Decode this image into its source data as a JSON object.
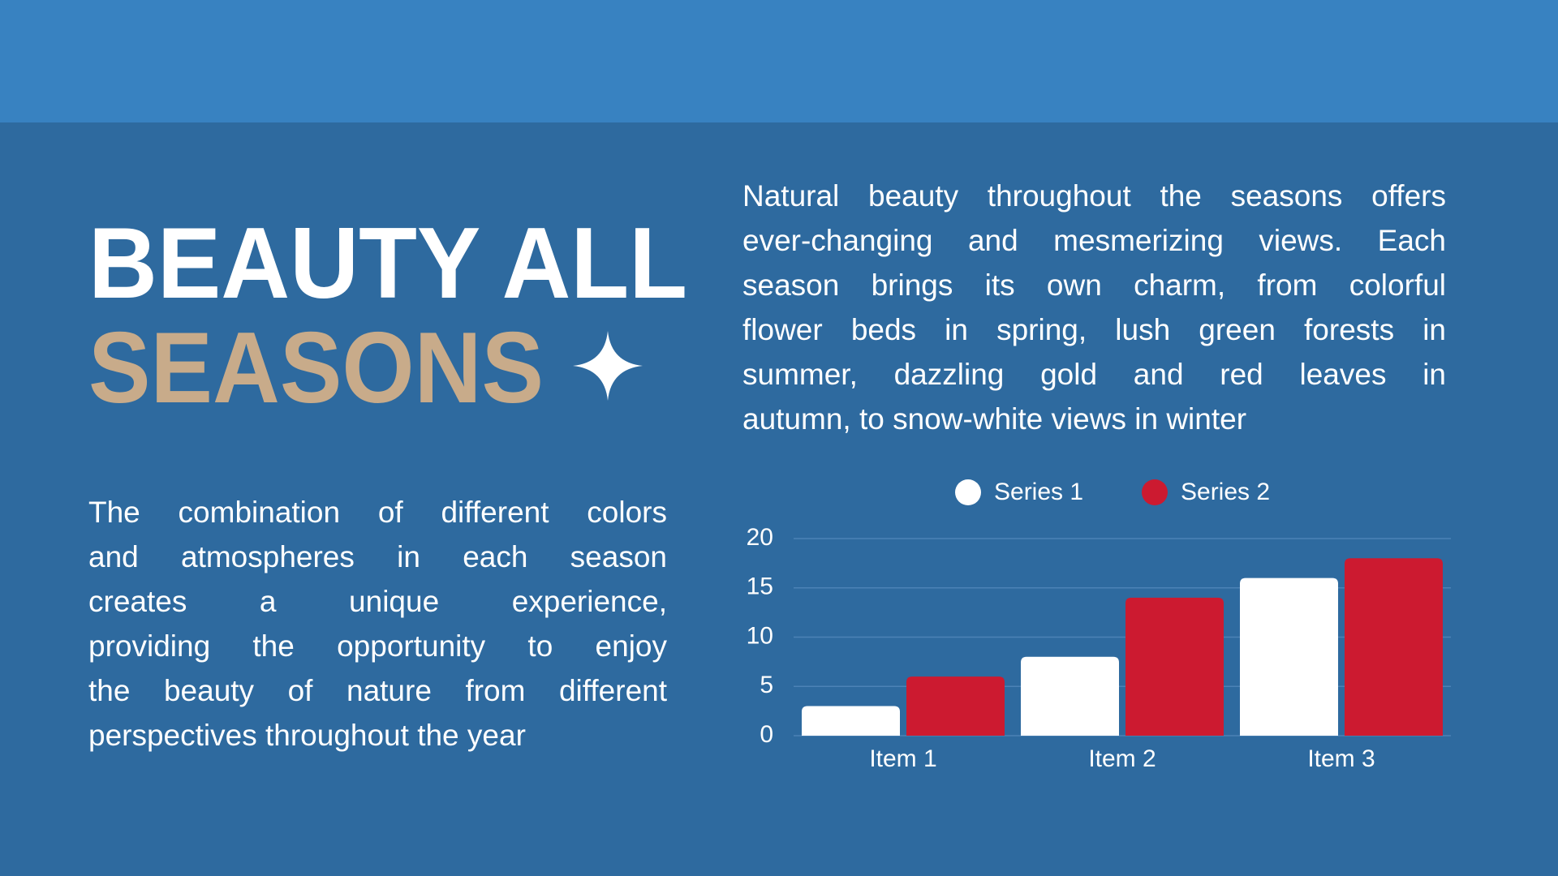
{
  "title_line1": "BEAUTY ALL",
  "title_line2": "SEASONS",
  "intro_lines": [
    "Natural beauty throughout the seasons offers",
    "ever-changing and mesmerizing views. Each",
    "season brings its own charm, from colorful",
    "flower beds in spring, lush green forests in",
    "summer, dazzling gold and red leaves in",
    "autumn, to snow-white views in winter"
  ],
  "body_lines": [
    "The combination of different colors",
    "and atmospheres in each season",
    "creates a unique experience,",
    "providing the opportunity to enjoy",
    "the beauty of nature from different",
    "perspectives throughout the year"
  ],
  "chart_data": {
    "type": "bar",
    "categories": [
      "Item 1",
      "Item 2",
      "Item 3"
    ],
    "series": [
      {
        "name": "Series 1",
        "color": "#ffffff",
        "values": [
          3,
          8,
          16
        ]
      },
      {
        "name": "Series 2",
        "color": "#cc1a30",
        "values": [
          6,
          14,
          18
        ]
      }
    ],
    "ylim": [
      0,
      20
    ],
    "yticks": [
      0,
      5,
      10,
      15,
      20
    ],
    "grid": true,
    "legend": "top"
  }
}
